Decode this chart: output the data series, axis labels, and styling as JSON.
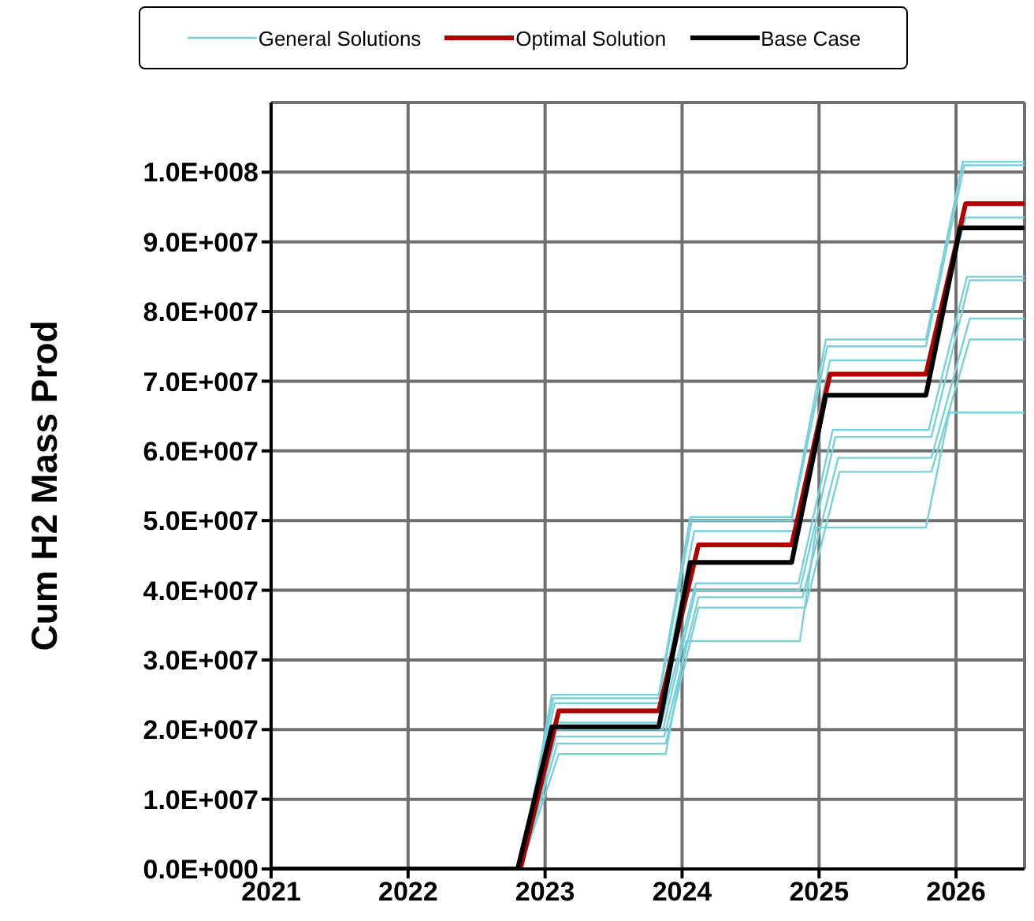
{
  "chart_data": {
    "type": "line",
    "ylabel": "Cum H2 Mass Prod",
    "xlim": [
      2021,
      2026.5
    ],
    "xticks": [
      2021,
      2022,
      2023,
      2024,
      2025,
      2026
    ],
    "ylim": [
      0,
      110000000
    ],
    "yticks": [
      {
        "value": 0,
        "label": "0.0E+000"
      },
      {
        "value": 10000000,
        "label": "1.0E+007"
      },
      {
        "value": 20000000,
        "label": "2.0E+007"
      },
      {
        "value": 30000000,
        "label": "3.0E+007"
      },
      {
        "value": 40000000,
        "label": "4.0E+007"
      },
      {
        "value": 50000000,
        "label": "5.0E+007"
      },
      {
        "value": 60000000,
        "label": "6.0E+007"
      },
      {
        "value": 70000000,
        "label": "7.0E+007"
      },
      {
        "value": 80000000,
        "label": "8.0E+007"
      },
      {
        "value": 90000000,
        "label": "9.0E+007"
      },
      {
        "value": 100000000,
        "label": "1.0E+008"
      }
    ],
    "grid": true,
    "legend": "top",
    "marker": "none",
    "line_style": "solid",
    "series": [
      {
        "name": "General Solutions",
        "color": "#77d0da",
        "x": [
          2021,
          2022.82,
          2023.05,
          2023.83,
          2024.06,
          2024.8,
          2025.05,
          2025.78,
          2026.05,
          2026.5
        ],
        "values": [
          0,
          0,
          25000000,
          25000000,
          50500000,
          50500000,
          76000000,
          76000000,
          101500000,
          101500000
        ]
      },
      {
        "color": "#77d0da",
        "x": [
          2021,
          2022.82,
          2023.06,
          2023.83,
          2024.07,
          2024.8,
          2025.06,
          2025.78,
          2026.06,
          2026.5
        ],
        "values": [
          0,
          0,
          24500000,
          24500000,
          50000000,
          50000000,
          75000000,
          75000000,
          101000000,
          101000000
        ]
      },
      {
        "color": "#77d0da",
        "x": [
          2021,
          2022.82,
          2023.07,
          2023.84,
          2024.09,
          2024.82,
          2025.08,
          2025.8,
          2026.07,
          2026.5
        ],
        "values": [
          0,
          0,
          23800000,
          23800000,
          48500000,
          48500000,
          73000000,
          73000000,
          93500000,
          93500000
        ]
      },
      {
        "color": "#77d0da",
        "x": [
          2021,
          2022.82,
          2023.08,
          2023.85,
          2024.1,
          2024.85,
          2025.1,
          2025.8,
          2026.08,
          2026.5
        ],
        "values": [
          0,
          0,
          21000000,
          21000000,
          41000000,
          41000000,
          63000000,
          63000000,
          85000000,
          85000000
        ]
      },
      {
        "color": "#77d0da",
        "x": [
          2021,
          2022.82,
          2023.08,
          2023.86,
          2024.1,
          2024.86,
          2025.12,
          2025.82,
          2026.1,
          2026.5
        ],
        "values": [
          0,
          0,
          20000000,
          20000000,
          40000000,
          40000000,
          62000000,
          62000000,
          84500000,
          84500000
        ]
      },
      {
        "color": "#77d0da",
        "x": [
          2021,
          2022.82,
          2023.08,
          2023.87,
          2024.12,
          2024.88,
          2025.14,
          2025.82,
          2026.1,
          2026.5
        ],
        "values": [
          0,
          0,
          19000000,
          19000000,
          39000000,
          39000000,
          59000000,
          59000000,
          79000000,
          79000000
        ]
      },
      {
        "color": "#77d0da",
        "x": [
          2021,
          2022.82,
          2023.09,
          2023.88,
          2024.12,
          2024.9,
          2025.15,
          2025.82,
          2026.1,
          2026.5
        ],
        "values": [
          0,
          0,
          18000000,
          18000000,
          37500000,
          37500000,
          57000000,
          57000000,
          76000000,
          76000000
        ]
      },
      {
        "color": "#77d0da",
        "x": [
          2021,
          2022.82,
          2023.1,
          2023.88,
          2024.03,
          2024.86,
          2024.98,
          2025.78,
          2025.95,
          2026.5
        ],
        "values": [
          0,
          0,
          16500000,
          16500000,
          32700000,
          32700000,
          49000000,
          49000000,
          65500000,
          65500000
        ]
      },
      {
        "name": "Optimal Solution",
        "color": "#b00000",
        "x": [
          2021,
          2022.82,
          2023.1,
          2023.83,
          2024.12,
          2024.8,
          2025.08,
          2025.78,
          2026.07,
          2026.5
        ],
        "values": [
          0,
          0,
          22700000,
          22700000,
          46500000,
          46500000,
          71000000,
          71000000,
          95500000,
          95500000
        ]
      },
      {
        "name": "Base Case",
        "color": "#000000",
        "x": [
          2021,
          2022.8,
          2023.05,
          2023.83,
          2024.06,
          2024.8,
          2025.05,
          2025.78,
          2026.03,
          2026.5
        ],
        "values": [
          0,
          0,
          20400000,
          20400000,
          44000000,
          44000000,
          68000000,
          68000000,
          92000000,
          92000000
        ]
      }
    ]
  }
}
